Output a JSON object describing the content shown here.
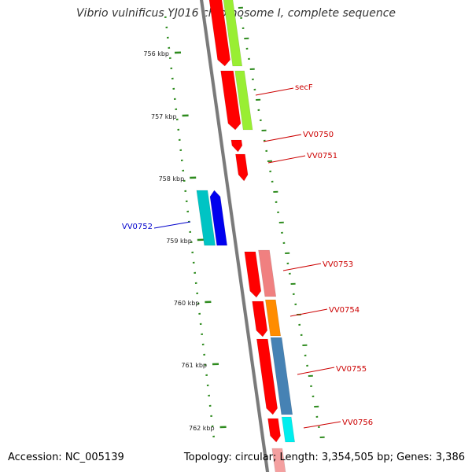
{
  "title": "Vibrio vulnificus YJ016 chromosome I, complete sequence",
  "footer": {
    "accession": "Accession: NC_005139",
    "summary": "Topology: circular; Length: 3,354,505 bp; Genes: 3,386"
  },
  "colors": {
    "backbone": "#7a7a7a",
    "tick": "#2e8b1e",
    "gene_forward": "#ff0000",
    "gene_reverse": "#0000ee",
    "label_forward": "#cc0000",
    "label_reverse": "#0000cc"
  },
  "ticks": {
    "labels": [
      "756 kbp",
      "757 kbp",
      "758 kbp",
      "759 kbp",
      "760 kbp",
      "761 kbp",
      "762 kbp"
    ]
  },
  "genes": [
    {
      "id": "g1",
      "label": "",
      "strand": "forward",
      "fill": "#ff0000",
      "match": "#99ee33"
    },
    {
      "id": "secF",
      "label": "secF",
      "strand": "forward",
      "fill": "#ff0000",
      "match": "#99ee33"
    },
    {
      "id": "VV0750",
      "label": "VV0750",
      "strand": "forward",
      "fill": "#ff0000",
      "match": ""
    },
    {
      "id": "VV0751",
      "label": "VV0751",
      "strand": "forward",
      "fill": "#ff0000",
      "match": ""
    },
    {
      "id": "VV0752",
      "label": "VV0752",
      "strand": "reverse",
      "fill": "#0000ee",
      "match": "#00c4c4"
    },
    {
      "id": "VV0753",
      "label": "VV0753",
      "strand": "forward",
      "fill": "#ff0000",
      "match": "#f08080"
    },
    {
      "id": "VV0754",
      "label": "VV0754",
      "strand": "forward",
      "fill": "#ff0000",
      "match": "#ff8c00"
    },
    {
      "id": "VV0755",
      "label": "VV0755",
      "strand": "forward",
      "fill": "#ff0000",
      "match": "#4682b4"
    },
    {
      "id": "VV0756",
      "label": "VV0756",
      "strand": "forward",
      "fill": "#ff0000",
      "match": "#00eeee"
    }
  ]
}
